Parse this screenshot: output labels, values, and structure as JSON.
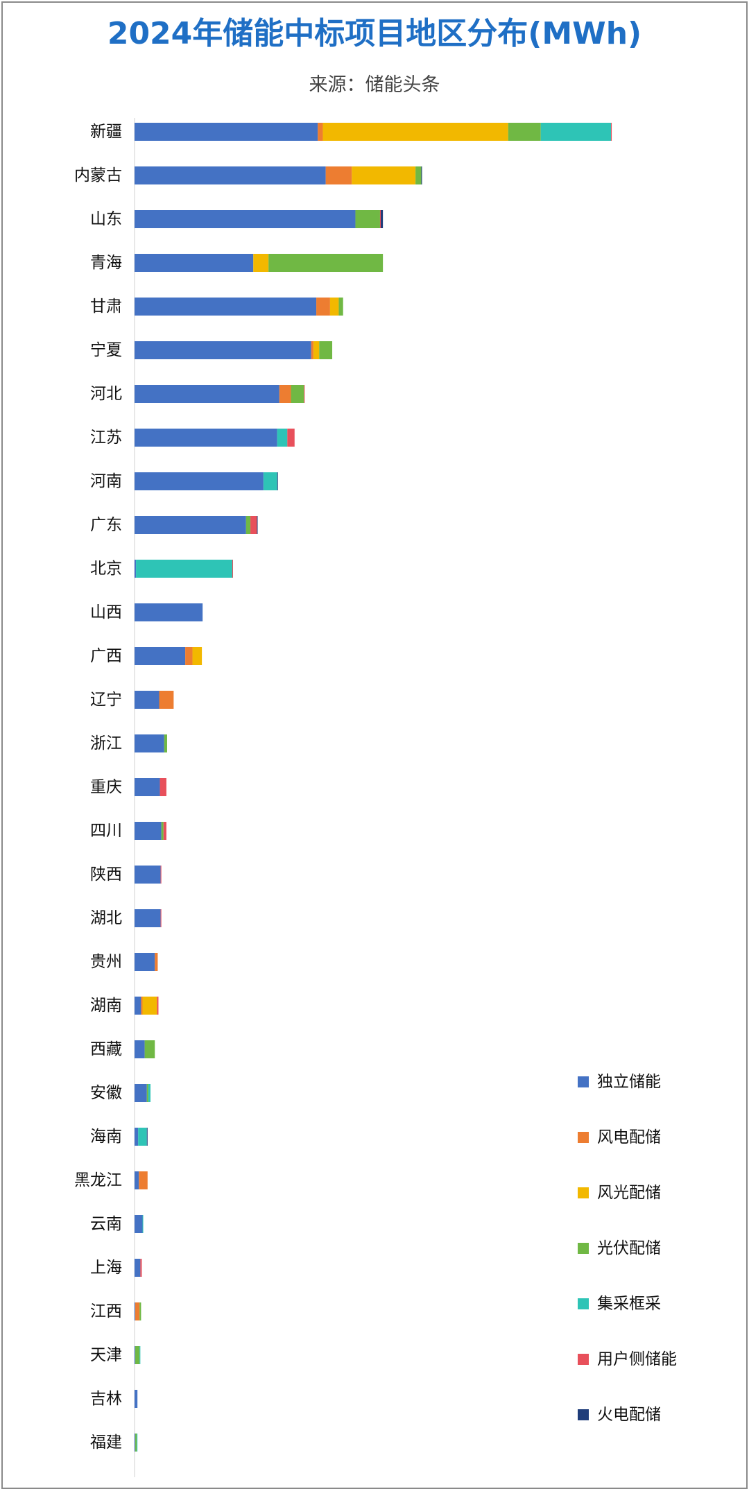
{
  "chart_data": {
    "type": "bar",
    "orientation": "horizontal",
    "stacked": true,
    "title": "2024年储能中标项目地区分布(MWh)",
    "subtitle": "来源：储能头条",
    "legend_position": "right",
    "grid": false,
    "xlim": [
      0,
      3400
    ],
    "categories": [
      "新疆",
      "内蒙古",
      "山东",
      "青海",
      "甘肃",
      "宁夏",
      "河北",
      "江苏",
      "河南",
      "广东",
      "北京",
      "山西",
      "广西",
      "辽宁",
      "浙江",
      "重庆",
      "四川",
      "陕西",
      "湖北",
      "贵州",
      "湖南",
      "西藏",
      "安徽",
      "海南",
      "黑龙江",
      "云南",
      "上海",
      "江西",
      "天津",
      "吉林",
      "福建"
    ],
    "series": [
      {
        "name": "独立储能",
        "color": "#4472c4",
        "values": [
          1265,
          1320,
          1525,
          820,
          1255,
          1220,
          1000,
          985,
          890,
          770,
          10,
          470,
          350,
          170,
          205,
          175,
          185,
          180,
          180,
          140,
          45,
          70,
          85,
          25,
          30,
          55,
          40,
          5,
          5,
          20,
          5
        ]
      },
      {
        "name": "风电配储",
        "color": "#ed7d31",
        "values": [
          35,
          180,
          0,
          0,
          95,
          15,
          80,
          0,
          0,
          0,
          0,
          0,
          50,
          100,
          0,
          0,
          0,
          0,
          0,
          20,
          10,
          0,
          0,
          0,
          60,
          0,
          0,
          30,
          0,
          0,
          0
        ]
      },
      {
        "name": "风光配储",
        "color": "#f2b800",
        "values": [
          1280,
          440,
          0,
          105,
          60,
          40,
          0,
          0,
          0,
          0,
          0,
          0,
          65,
          0,
          0,
          0,
          0,
          0,
          0,
          0,
          100,
          0,
          0,
          0,
          0,
          0,
          0,
          0,
          0,
          0,
          0
        ]
      },
      {
        "name": "光伏配储",
        "color": "#70b844",
        "values": [
          225,
          40,
          170,
          790,
          30,
          90,
          90,
          0,
          0,
          30,
          0,
          0,
          0,
          0,
          20,
          0,
          15,
          0,
          0,
          0,
          0,
          70,
          10,
          0,
          0,
          0,
          0,
          10,
          30,
          0,
          10
        ]
      },
      {
        "name": "集采框采",
        "color": "#2ec4b6",
        "values": [
          485,
          0,
          0,
          0,
          0,
          0,
          0,
          70,
          95,
          0,
          665,
          0,
          0,
          0,
          0,
          0,
          0,
          0,
          0,
          0,
          0,
          0,
          15,
          60,
          0,
          5,
          0,
          0,
          5,
          0,
          5
        ]
      },
      {
        "name": "用户侧储能",
        "color": "#e8505b",
        "values": [
          5,
          0,
          5,
          0,
          0,
          0,
          5,
          50,
          0,
          45,
          5,
          0,
          0,
          0,
          0,
          45,
          20,
          5,
          5,
          0,
          10,
          0,
          0,
          0,
          0,
          0,
          10,
          0,
          0,
          0,
          0
        ]
      },
      {
        "name": "火电配储",
        "color": "#1f3d7a",
        "values": [
          0,
          5,
          15,
          0,
          0,
          0,
          0,
          0,
          5,
          5,
          0,
          0,
          0,
          0,
          0,
          0,
          0,
          0,
          0,
          0,
          0,
          0,
          0,
          5,
          0,
          0,
          0,
          0,
          0,
          0,
          0
        ]
      }
    ]
  }
}
